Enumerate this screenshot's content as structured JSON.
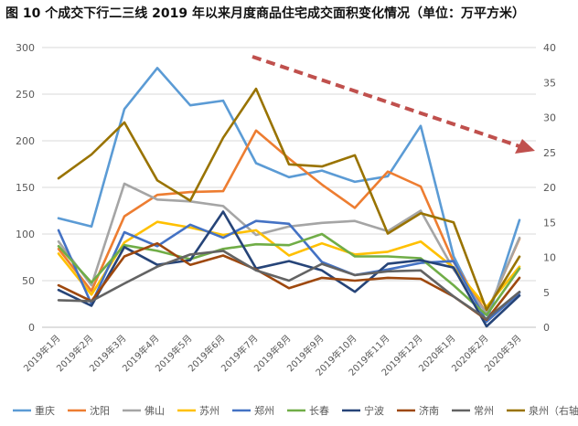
{
  "chart_data": {
    "type": "line",
    "title": "图 10 个成交下行二三线 2019 年以来月度商品住宅成交面积变化情况（单位：万平方米）",
    "categories": [
      "2019年1月",
      "2019年2月",
      "2019年3月",
      "2019年4月",
      "2019年5月",
      "2019年6月",
      "2019年7月",
      "2019年8月",
      "2019年9月",
      "2019年10月",
      "2019年11月",
      "2019年12月",
      "2020年1月",
      "2020年2月",
      "2020年3月"
    ],
    "y_left": {
      "min": 0,
      "max": 300,
      "ticks": [
        0,
        50,
        100,
        150,
        200,
        250,
        300
      ]
    },
    "y_right": {
      "min": 0,
      "max": 40,
      "ticks": [
        0,
        5,
        10,
        15,
        20,
        25,
        30,
        35,
        40
      ]
    },
    "grid": true,
    "legend_position": "bottom",
    "series": [
      {
        "name": "重庆",
        "axis": "left",
        "color": "#5B9BD5",
        "values": [
          117,
          108,
          234,
          278,
          238,
          243,
          176,
          161,
          168,
          156,
          162,
          216,
          76,
          6,
          115
        ]
      },
      {
        "name": "沈阳",
        "axis": "left",
        "color": "#ED7D31",
        "values": [
          84,
          39,
          119,
          142,
          145,
          146,
          211,
          181,
          153,
          128,
          167,
          151,
          70,
          15,
          95
        ]
      },
      {
        "name": "佛山",
        "axis": "left",
        "color": "#A5A5A5",
        "values": [
          92,
          45,
          154,
          137,
          135,
          130,
          99,
          108,
          112,
          114,
          103,
          125,
          62,
          15,
          96
        ]
      },
      {
        "name": "苏州",
        "axis": "left",
        "color": "#FFC000",
        "values": [
          79,
          35,
          91,
          113,
          107,
          99,
          104,
          77,
          90,
          78,
          81,
          92,
          64,
          22,
          65
        ]
      },
      {
        "name": "郑州",
        "axis": "left",
        "color": "#4472C4",
        "values": [
          104,
          25,
          102,
          87,
          110,
          96,
          114,
          111,
          70,
          56,
          62,
          69,
          71,
          6,
          37
        ]
      },
      {
        "name": "长春",
        "axis": "left",
        "color": "#70AD47",
        "values": [
          87,
          48,
          88,
          82,
          73,
          84,
          89,
          88,
          100,
          76,
          76,
          74,
          45,
          13,
          63
        ]
      },
      {
        "name": "宁波",
        "axis": "left",
        "color": "#264478",
        "values": [
          40,
          23,
          86,
          67,
          72,
          124,
          63,
          71,
          61,
          38,
          68,
          72,
          64,
          1,
          34
        ]
      },
      {
        "name": "济南",
        "axis": "left",
        "color": "#9E480E",
        "values": [
          45,
          28,
          76,
          90,
          67,
          77,
          62,
          42,
          53,
          50,
          53,
          52,
          33,
          8,
          53
        ]
      },
      {
        "name": "常州",
        "axis": "left",
        "color": "#636363",
        "values": [
          29,
          28,
          47,
          65,
          78,
          82,
          61,
          50,
          68,
          56,
          60,
          61,
          33,
          9,
          38
        ]
      },
      {
        "name": "泉州（右轴）",
        "axis": "right",
        "color": "#997300",
        "values": [
          21.3,
          24.7,
          29.3,
          21,
          18.1,
          27.1,
          34.1,
          23.3,
          23,
          24.6,
          13.4,
          16.3,
          15,
          2.5,
          10.1
        ]
      }
    ],
    "annotation": {
      "shape": "dashed-arrow",
      "color": "#C0504D",
      "direction": "down-right"
    }
  }
}
